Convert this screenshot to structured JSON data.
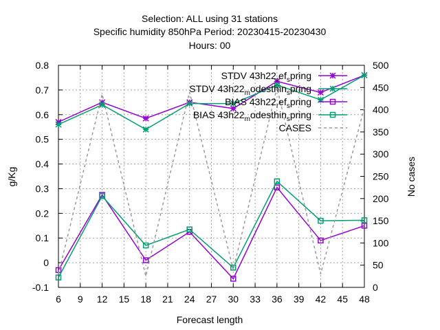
{
  "chart_data": {
    "type": "line",
    "title_lines": [
      "Selection: ALL using    31 stations",
      "Specific humidity 850hPa   Period: 20230415-20230430",
      "Hours:  00"
    ],
    "xlabel": "Forecast length",
    "ylabel": "g/Kg",
    "y2label": "No cases",
    "xlim": [
      6,
      48
    ],
    "ylim": [
      -0.1,
      0.8
    ],
    "y2lim": [
      0,
      500
    ],
    "xticks": [
      6,
      9,
      12,
      15,
      18,
      21,
      24,
      27,
      30,
      33,
      36,
      39,
      42,
      45,
      48
    ],
    "yticks": [
      -0.1,
      0,
      0.1,
      0.2,
      0.3,
      0.4,
      0.5,
      0.6,
      0.7,
      0.8
    ],
    "ytick_labels": [
      "-0.1",
      "0",
      "0.1",
      "0.2",
      "0.3",
      "0.4",
      "0.5",
      "0.6",
      "0.7",
      "0.8"
    ],
    "y2ticks": [
      0,
      50,
      100,
      150,
      200,
      250,
      300,
      350,
      400,
      450,
      500
    ],
    "grid": true,
    "legend_position": "top-right",
    "x": [
      6,
      12,
      18,
      24,
      30,
      36,
      42,
      48
    ],
    "series": [
      {
        "legend_parts": [
          "STDV 43h22",
          "r",
          "ef",
          "s",
          "pring"
        ],
        "color": "#9400d3",
        "marker": "star",
        "axis": "y1",
        "values": [
          0.57,
          0.65,
          0.585,
          0.65,
          0.625,
          0.735,
          0.69,
          0.76
        ]
      },
      {
        "legend_parts": [
          "STDV 43h22",
          "m",
          "odesthin",
          "s",
          "pring"
        ],
        "color": "#009e73",
        "marker": "star",
        "axis": "y1",
        "values": [
          0.56,
          0.64,
          0.54,
          0.645,
          0.645,
          0.72,
          0.66,
          0.76
        ]
      },
      {
        "legend_parts": [
          "BIAS 43h22",
          "r",
          "ef",
          "s",
          "pring"
        ],
        "color": "#9400d3",
        "marker": "square",
        "axis": "y1",
        "values": [
          -0.03,
          0.275,
          0.01,
          0.125,
          -0.065,
          0.305,
          0.09,
          0.15
        ]
      },
      {
        "legend_parts": [
          "BIAS 43h22",
          "m",
          "odesthin",
          "s",
          "pring"
        ],
        "color": "#009e73",
        "marker": "square",
        "axis": "y1",
        "values": [
          -0.06,
          0.27,
          0.07,
          0.135,
          -0.02,
          0.33,
          0.17,
          0.172
        ]
      },
      {
        "name": "CASES",
        "color": "#999999",
        "marker": "none",
        "dashed": true,
        "axis": "y2",
        "values": [
          30,
          435,
          25,
          440,
          40,
          450,
          30,
          405
        ]
      }
    ]
  }
}
